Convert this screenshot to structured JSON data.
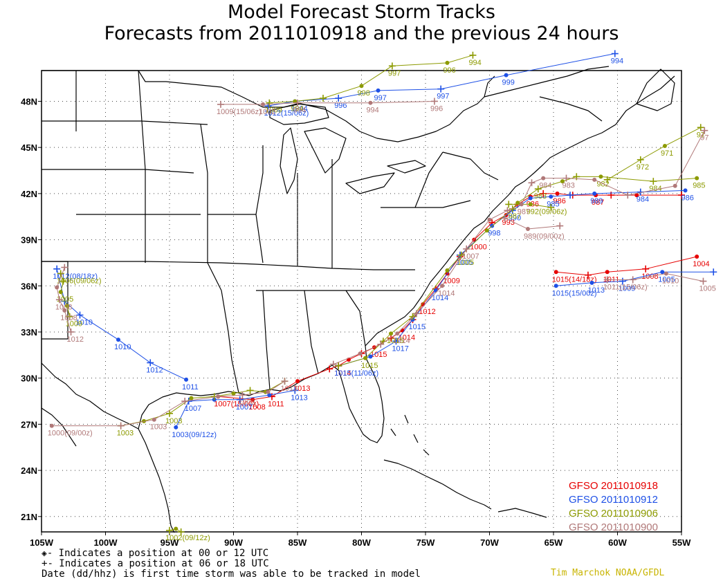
{
  "title": "Model Forecast Storm Tracks",
  "subtitle": "Forecasts from 2011010918 and the previous 24 hours",
  "axes": {
    "lon_labels": [
      "105W",
      "100W",
      "95W",
      "90W",
      "85W",
      "80W",
      "75W",
      "70W",
      "65W",
      "60W",
      "55W"
    ],
    "lat_labels": [
      "48N",
      "45N",
      "42N",
      "39N",
      "36N",
      "33N",
      "30N",
      "27N",
      "24N",
      "21N"
    ]
  },
  "legend": [
    {
      "label": "GFSO 2011010918",
      "color": "#e60000"
    },
    {
      "label": "GFSO 2011010912",
      "color": "#1e50e6"
    },
    {
      "label": "GFSO 2011010906",
      "color": "#8c9a00"
    },
    {
      "label": "GFSO 2011010900",
      "color": "#b07878"
    }
  ],
  "footnotes": {
    "line1": "- Indicates a position at 00 or 12 UTC",
    "line2": "- Indicates a position at 06 or 18 UTC",
    "line3": "Date (dd/hhz) is first time storm was able to be tracked in model"
  },
  "credit": "Tim Marchok NOAA/GFDL",
  "tracks": [
    {
      "id": "red-main",
      "color": "#e60000",
      "points": [
        [
          -81.8,
          30.8,
          "+",
          "1014"
        ],
        [
          -81,
          31.2,
          "o",
          ""
        ],
        [
          -80,
          31.6,
          "+",
          ""
        ],
        [
          -79,
          32,
          "o",
          "1015"
        ],
        [
          -77.7,
          32.6,
          "+",
          ""
        ],
        [
          -76.8,
          33.1,
          "o",
          "1014"
        ],
        [
          -76,
          33.8,
          "+",
          ""
        ],
        [
          -75.2,
          34.8,
          "o",
          "1012"
        ],
        [
          -74.2,
          35.8,
          "+",
          ""
        ],
        [
          -73.3,
          36.8,
          "o",
          "1009"
        ],
        [
          -72.3,
          37.9,
          "+",
          ""
        ],
        [
          -71.2,
          39,
          "o",
          "1000"
        ],
        [
          -69.8,
          40.1,
          "+",
          ""
        ],
        [
          -68.7,
          40.6,
          "o",
          "993"
        ],
        [
          -67.8,
          41.3,
          "+",
          ""
        ],
        [
          -66.8,
          41.8,
          "o",
          "986"
        ],
        [
          -65.8,
          42,
          "+",
          ""
        ],
        [
          -64.7,
          42,
          "o",
          "986"
        ],
        [
          -63.5,
          41.9,
          "+",
          ""
        ],
        [
          -61.7,
          41.9,
          "o",
          "987"
        ],
        [
          -60.5,
          41.9,
          "+",
          ""
        ],
        [
          -58.5,
          41.9,
          "o",
          ""
        ],
        [
          -55,
          41.9,
          "+",
          ""
        ]
      ]
    },
    {
      "id": "red-gulf",
      "color": "#e60000",
      "points": [
        [
          -91.2,
          28.8,
          "o",
          "1007(15/00z)"
        ],
        [
          -88.5,
          28.6,
          "o",
          "1008"
        ],
        [
          -87,
          28.8,
          "+",
          "1011"
        ],
        [
          -85,
          29.8,
          "o",
          "1013"
        ],
        [
          -82.5,
          30.6,
          "+",
          ""
        ],
        [
          -81.8,
          30.8,
          "+",
          ""
        ]
      ]
    },
    {
      "id": "red-atl",
      "color": "#e60000",
      "points": [
        [
          -64.8,
          36.9,
          "o",
          "1015(14/18z)"
        ],
        [
          -62.3,
          36.7,
          "+",
          ""
        ],
        [
          -60.8,
          36.9,
          "o",
          "1011"
        ],
        [
          -57.8,
          37.1,
          "+",
          "1008"
        ],
        [
          -53.8,
          37.9,
          "o",
          "1004"
        ]
      ]
    },
    {
      "id": "blue-main",
      "color": "#1e50e6",
      "points": [
        [
          -81.8,
          30.8,
          "+",
          "1015(11/06z)"
        ],
        [
          -79.3,
          31.4,
          "o",
          ""
        ],
        [
          -77.3,
          32.4,
          "+",
          "1017"
        ],
        [
          -76,
          33.8,
          "o",
          "1015"
        ],
        [
          -74.2,
          35.7,
          "o",
          "1014"
        ],
        [
          -72.3,
          38,
          "+",
          "1005"
        ],
        [
          -69.8,
          39.9,
          "o",
          "998"
        ],
        [
          -68.2,
          40.9,
          "+",
          "990"
        ],
        [
          -66.8,
          41.7,
          "o",
          ""
        ],
        [
          -65.2,
          41.8,
          "o",
          "985"
        ],
        [
          -63.7,
          41.9,
          "+",
          ""
        ],
        [
          -61.8,
          42,
          "o",
          "989"
        ],
        [
          -58.2,
          42.1,
          "+",
          "984"
        ],
        [
          -54.7,
          42.2,
          "o",
          "986"
        ]
      ]
    },
    {
      "id": "blue-gulf",
      "color": "#1e50e6",
      "points": [
        [
          -94.5,
          26.8,
          "o",
          "1003(09/12z)"
        ],
        [
          -93.5,
          28.5,
          "+",
          "1007"
        ],
        [
          -91.5,
          28.6,
          "o",
          ""
        ],
        [
          -89.5,
          28.6,
          "+",
          "1007"
        ],
        [
          -87.2,
          28.9,
          "o",
          ""
        ],
        [
          -85.2,
          29.2,
          "+",
          "1013"
        ]
      ]
    },
    {
      "id": "blue-texas",
      "color": "#1e50e6",
      "points": [
        [
          -103.8,
          37.1,
          "+",
          "1012(08/18z)"
        ],
        [
          -103.2,
          35,
          "+",
          ""
        ],
        [
          -102,
          34.1,
          "+",
          "1010"
        ],
        [
          -99,
          32.5,
          "o",
          "1010"
        ],
        [
          -96.5,
          31,
          "+",
          "1012"
        ],
        [
          -93.7,
          29.9,
          "o",
          "1011"
        ]
      ]
    },
    {
      "id": "blue-north",
      "color": "#1e50e6",
      "points": [
        [
          -87.3,
          47.7,
          "+",
          "1012(15/06z)"
        ],
        [
          -85.2,
          48,
          "o",
          "1004"
        ],
        [
          -81.8,
          48.2,
          "+",
          "996"
        ],
        [
          -78.7,
          48.7,
          "o",
          "997"
        ],
        [
          -73.8,
          48.8,
          "+",
          "997"
        ],
        [
          -68.7,
          49.7,
          "o",
          "999"
        ],
        [
          -60.2,
          51.1,
          "+",
          "994"
        ]
      ]
    },
    {
      "id": "blue-atl",
      "color": "#1e50e6",
      "points": [
        [
          -64.8,
          36,
          "o",
          "1015(15/00z)"
        ],
        [
          -62,
          36.2,
          "o",
          "1013"
        ],
        [
          -59.6,
          36.3,
          "+",
          "1009"
        ],
        [
          -56.5,
          36.9,
          "o",
          "1005"
        ],
        [
          -52.5,
          36.9,
          "+",
          ""
        ]
      ]
    },
    {
      "id": "olive-main",
      "color": "#8c9a00",
      "points": [
        [
          -81.8,
          30.8,
          "+",
          ""
        ],
        [
          -79.7,
          31.3,
          "o",
          "1015"
        ],
        [
          -78.3,
          32.4,
          "+",
          ""
        ],
        [
          -77.7,
          32.9,
          "o",
          "1015"
        ],
        [
          -76,
          34,
          "+",
          ""
        ],
        [
          -73.3,
          37,
          "o",
          ""
        ],
        [
          -72.2,
          38,
          "+",
          "1005"
        ],
        [
          -70.2,
          39.6,
          "o",
          ""
        ],
        [
          -68.2,
          41,
          "+",
          "987"
        ],
        [
          -67.8,
          41.4,
          "o",
          ""
        ],
        [
          -66.2,
          42.3,
          "+",
          "983"
        ],
        [
          -64.3,
          42.8,
          "o",
          ""
        ],
        [
          -63.2,
          43.1,
          "+",
          ""
        ],
        [
          -61.3,
          43.1,
          "o",
          "982"
        ],
        [
          -57.2,
          42.8,
          "+",
          "984"
        ],
        [
          -53.8,
          43,
          "o",
          "985"
        ]
      ]
    },
    {
      "id": "olive-north",
      "color": "#8c9a00",
      "points": [
        [
          -87.2,
          47.9,
          "+",
          "1009"
        ],
        [
          -85.2,
          48,
          "o",
          "994"
        ],
        [
          -83,
          48.2,
          "+",
          ""
        ],
        [
          -80,
          49,
          "o",
          "998"
        ],
        [
          -77.6,
          50.3,
          "+",
          "997"
        ],
        [
          -73.3,
          50.5,
          "o",
          "996"
        ],
        [
          -71.3,
          51,
          "+",
          "994"
        ]
      ]
    },
    {
      "id": "olive-atl2",
      "color": "#8c9a00",
      "points": [
        [
          -60.8,
          42.9,
          "+",
          ""
        ],
        [
          -58.2,
          44.2,
          "+",
          "972"
        ],
        [
          -56.3,
          45.1,
          "o",
          "971"
        ],
        [
          -53.5,
          46.3,
          "+",
          "97"
        ]
      ]
    },
    {
      "id": "olive-gulf",
      "color": "#8c9a00",
      "points": [
        [
          -98.8,
          26.9,
          "+",
          "1003"
        ],
        [
          -97,
          27.2,
          "o",
          ""
        ],
        [
          -95,
          27.7,
          "+",
          "1003"
        ],
        [
          -93.3,
          28.7,
          "o",
          ""
        ],
        [
          -91.5,
          28.8,
          "+",
          ""
        ],
        [
          -90,
          29,
          "o",
          ""
        ],
        [
          -88.7,
          29.2,
          "+",
          ""
        ],
        [
          -87.5,
          29.1,
          "o",
          ""
        ],
        [
          -86,
          29.8,
          "+",
          ""
        ]
      ]
    },
    {
      "id": "olive-texas",
      "color": "#8c9a00",
      "points": [
        [
          -103.5,
          36.8,
          "+",
          "1006(09/06z)"
        ],
        [
          -103.3,
          36.3,
          "+",
          ""
        ],
        [
          -103.5,
          35.6,
          "o",
          "1005"
        ],
        [
          -103,
          34.7,
          "o",
          ""
        ],
        [
          -102.8,
          34,
          "+",
          "1009"
        ]
      ]
    },
    {
      "id": "olive-south",
      "color": "#8c9a00",
      "points": [
        [
          -95,
          20.1,
          "+",
          "1002(09/12z)"
        ],
        [
          -94.5,
          20.2,
          "o",
          ""
        ],
        [
          -94.1,
          20,
          "+",
          ""
        ]
      ]
    },
    {
      "id": "olive-east",
      "color": "#8c9a00",
      "points": [
        [
          -68.5,
          41.3,
          "+",
          ""
        ],
        [
          -66.8,
          41.3,
          "o",
          "992(09/06z)"
        ],
        [
          -65.2,
          41.1,
          "+",
          ""
        ]
      ]
    },
    {
      "id": "brown-main",
      "color": "#b07878",
      "points": [
        [
          -82.2,
          30.9,
          "+",
          ""
        ],
        [
          -80.1,
          31.6,
          "o",
          ""
        ],
        [
          -78.5,
          32.2,
          "+",
          ""
        ],
        [
          -77.2,
          32.9,
          "o",
          "1014"
        ],
        [
          -75.7,
          34.2,
          "+",
          ""
        ],
        [
          -73.7,
          36,
          "o",
          "1014"
        ],
        [
          -71.8,
          38.4,
          "+",
          "1007"
        ],
        [
          -70,
          40.3,
          "o",
          ""
        ],
        [
          -68.6,
          40.9,
          "+",
          ""
        ],
        [
          -67.5,
          41.3,
          "o",
          "987"
        ],
        [
          -66.7,
          42.7,
          "+",
          ""
        ],
        [
          -65.8,
          43,
          "o",
          "984"
        ],
        [
          -64,
          43,
          "+",
          "983"
        ],
        [
          -61.8,
          42.9,
          "o",
          ""
        ],
        [
          -59.2,
          41.9,
          "+",
          ""
        ],
        [
          -55.5,
          42.5,
          "o",
          ""
        ],
        [
          -53.2,
          46.1,
          "+",
          "97"
        ]
      ]
    },
    {
      "id": "brown-north",
      "color": "#b07878",
      "points": [
        [
          -91,
          47.8,
          "+",
          "1009(15/06z)"
        ],
        [
          -87.7,
          47.8,
          "o",
          "1002"
        ],
        [
          -85,
          47.9,
          "+",
          "994"
        ],
        [
          -79.3,
          47.9,
          "o",
          "994"
        ],
        [
          -74.3,
          48,
          "+",
          "996"
        ]
      ]
    },
    {
      "id": "brown-gulf",
      "color": "#b07878",
      "points": [
        [
          -104.2,
          26.9,
          "o",
          "1000(09/00z)"
        ],
        [
          -98.8,
          26.9,
          "+",
          ""
        ],
        [
          -96.2,
          27.3,
          "o",
          "1003"
        ],
        [
          -93.8,
          28.5,
          "+",
          ""
        ],
        [
          -91.2,
          28.8,
          "o",
          ""
        ],
        [
          -89.3,
          28.9,
          "+",
          "1003"
        ],
        [
          -87.3,
          29.1,
          "o",
          ""
        ],
        [
          -86,
          29.8,
          "+",
          "1013"
        ]
      ]
    },
    {
      "id": "brown-texas",
      "color": "#b07878",
      "points": [
        [
          -103.2,
          37.2,
          "+",
          ""
        ],
        [
          -103.8,
          35.9,
          "o",
          ""
        ],
        [
          -103.6,
          35.1,
          "+",
          "1008"
        ],
        [
          -103.2,
          34.4,
          "o",
          "1008"
        ],
        [
          -102.7,
          33,
          "+",
          "1012"
        ]
      ]
    },
    {
      "id": "brown-east",
      "color": "#b07878",
      "points": [
        [
          -68.8,
          40.4,
          "+",
          ""
        ],
        [
          -67,
          39.7,
          "o",
          "989(09/00z)"
        ],
        [
          -64.5,
          39.9,
          "+",
          ""
        ]
      ]
    },
    {
      "id": "brown-atl",
      "color": "#b07878",
      "points": [
        [
          -60.8,
          36.4,
          "+",
          "1011(15/06z)"
        ],
        [
          -58.8,
          36.4,
          "+",
          ""
        ],
        [
          -56.2,
          36.8,
          "o",
          "1010"
        ],
        [
          -53.3,
          36.3,
          "+",
          "1005"
        ]
      ]
    }
  ]
}
